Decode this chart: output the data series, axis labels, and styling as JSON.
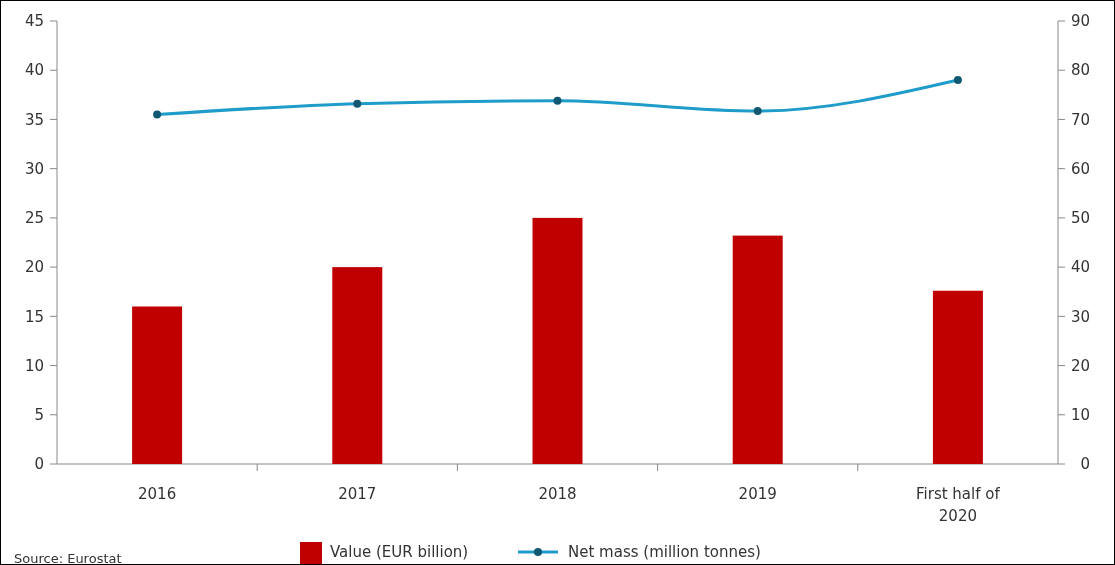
{
  "chart_data": {
    "type": "bar",
    "categories": [
      "2016",
      "2017",
      "2018",
      "2019",
      "First half of 2020"
    ],
    "series": [
      {
        "name": "Value (EUR billion)",
        "color": "#c00000",
        "values": [
          16,
          20,
          25,
          23.2,
          17.6
        ]
      },
      {
        "name": "Net mass (million tonnes)",
        "color": "#1f9cc9",
        "type": "line",
        "axis": "y2",
        "values": [
          71,
          73.2,
          73.8,
          71.7,
          78
        ]
      }
    ],
    "ylim": [
      0,
      45
    ],
    "yticks": [
      0,
      5,
      10,
      15,
      20,
      25,
      30,
      35,
      40,
      45
    ],
    "y2lim": [
      0,
      90
    ],
    "y2ticks": [
      0,
      10,
      20,
      30,
      40,
      50,
      60,
      70,
      80,
      90
    ],
    "marker": "circle",
    "line_style": "solid",
    "grid": false,
    "legend": "bottom",
    "annotations": [
      "Source: Eurostat"
    ]
  }
}
